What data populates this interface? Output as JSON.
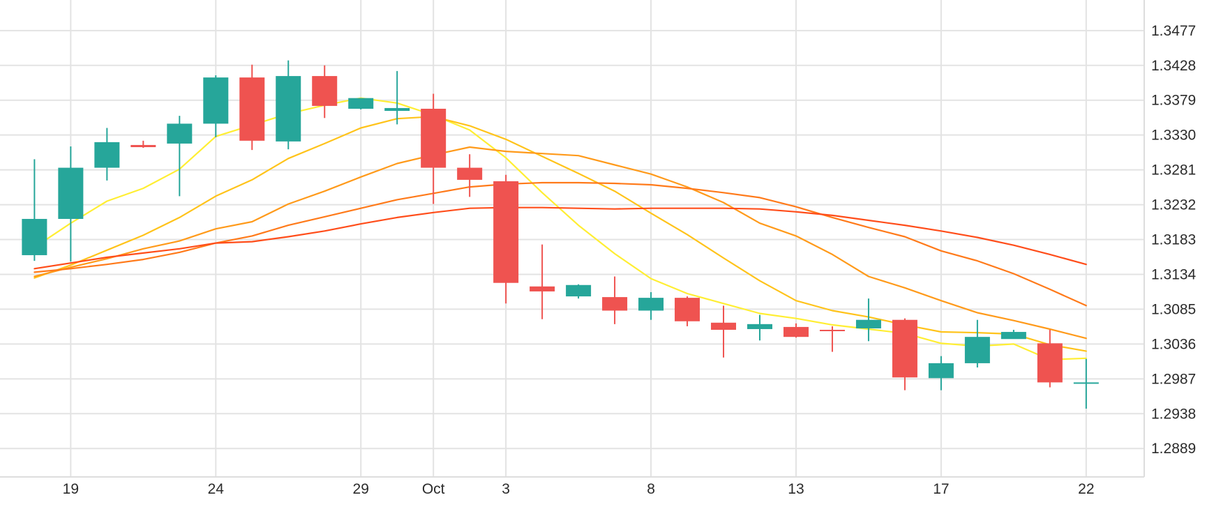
{
  "chart_data": {
    "type": "candlestick",
    "title": "",
    "xlabel": "",
    "ylabel": "",
    "grid": true,
    "y_axis_position": "right",
    "ylim": [
      1.2849,
      1.352
    ],
    "y_ticks": [
      1.2889,
      1.2938,
      1.2987,
      1.3036,
      1.3085,
      1.3134,
      1.3183,
      1.3232,
      1.3281,
      1.333,
      1.3379,
      1.3428,
      1.3477
    ],
    "y_tick_labels": [
      "1.2889",
      "1.2938",
      "1.2987",
      "1.3036",
      "1.3085",
      "1.3134",
      "1.3183",
      "1.3232",
      "1.3281",
      "1.3330",
      "1.3379",
      "1.3428",
      "1.3477"
    ],
    "x_ticks": [
      1,
      5,
      9,
      11,
      13,
      17,
      21,
      25,
      29
    ],
    "x_tick_labels": [
      "19",
      "24",
      "29",
      "Oct",
      "3",
      "8",
      "13",
      "17",
      "22"
    ],
    "xlim": [
      -0.95,
      30.6
    ],
    "colors": {
      "up": "#26a69a",
      "down": "#ef5350",
      "grid": "#e3e3e3",
      "axis_line": "#dddddd"
    },
    "candles": [
      {
        "x": 0,
        "open": 1.3161,
        "high": 1.3296,
        "low": 1.3153,
        "close": 1.3212
      },
      {
        "x": 1,
        "open": 1.3212,
        "high": 1.3314,
        "low": 1.3152,
        "close": 1.3284
      },
      {
        "x": 2,
        "open": 1.3284,
        "high": 1.334,
        "low": 1.3266,
        "close": 1.332
      },
      {
        "x": 3,
        "open": 1.3316,
        "high": 1.3322,
        "low": 1.3312,
        "close": 1.3313
      },
      {
        "x": 4,
        "open": 1.3318,
        "high": 1.3357,
        "low": 1.3244,
        "close": 1.3346
      },
      {
        "x": 5,
        "open": 1.3346,
        "high": 1.3414,
        "low": 1.3327,
        "close": 1.3411
      },
      {
        "x": 6,
        "open": 1.3411,
        "high": 1.3429,
        "low": 1.3309,
        "close": 1.3322
      },
      {
        "x": 7,
        "open": 1.3321,
        "high": 1.3435,
        "low": 1.331,
        "close": 1.3413
      },
      {
        "x": 8,
        "open": 1.3413,
        "high": 1.3428,
        "low": 1.3354,
        "close": 1.3371
      },
      {
        "x": 9,
        "open": 1.3367,
        "high": 1.3382,
        "low": 1.3366,
        "close": 1.3382
      },
      {
        "x": 10,
        "open": 1.3364,
        "high": 1.342,
        "low": 1.3345,
        "close": 1.3368
      },
      {
        "x": 11,
        "open": 1.3367,
        "high": 1.3388,
        "low": 1.3233,
        "close": 1.3284
      },
      {
        "x": 12,
        "open": 1.3284,
        "high": 1.3303,
        "low": 1.3243,
        "close": 1.3267
      },
      {
        "x": 13,
        "open": 1.3265,
        "high": 1.3274,
        "low": 1.3093,
        "close": 1.3122
      },
      {
        "x": 14,
        "open": 1.3117,
        "high": 1.3176,
        "low": 1.3071,
        "close": 1.311
      },
      {
        "x": 15,
        "open": 1.3103,
        "high": 1.312,
        "low": 1.31,
        "close": 1.3119
      },
      {
        "x": 16,
        "open": 1.3102,
        "high": 1.3131,
        "low": 1.3064,
        "close": 1.3083
      },
      {
        "x": 17,
        "open": 1.3083,
        "high": 1.3109,
        "low": 1.307,
        "close": 1.3101
      },
      {
        "x": 18,
        "open": 1.3101,
        "high": 1.3103,
        "low": 1.3061,
        "close": 1.3068
      },
      {
        "x": 19,
        "open": 1.3066,
        "high": 1.309,
        "low": 1.3017,
        "close": 1.3056
      },
      {
        "x": 20,
        "open": 1.3057,
        "high": 1.3077,
        "low": 1.3041,
        "close": 1.3064
      },
      {
        "x": 21,
        "open": 1.306,
        "high": 1.3065,
        "low": 1.3045,
        "close": 1.3046
      },
      {
        "x": 22,
        "open": 1.3056,
        "high": 1.3061,
        "low": 1.3025,
        "close": 1.3055
      },
      {
        "x": 23,
        "open": 1.3058,
        "high": 1.31,
        "low": 1.304,
        "close": 1.307
      },
      {
        "x": 24,
        "open": 1.307,
        "high": 1.3072,
        "low": 1.2971,
        "close": 1.2989
      },
      {
        "x": 25,
        "open": 1.2988,
        "high": 1.3019,
        "low": 1.2971,
        "close": 1.3009
      },
      {
        "x": 26,
        "open": 1.3009,
        "high": 1.307,
        "low": 1.3003,
        "close": 1.3046
      },
      {
        "x": 27,
        "open": 1.3043,
        "high": 1.3056,
        "low": 1.3048,
        "close": 1.3053
      },
      {
        "x": 28,
        "open": 1.3037,
        "high": 1.3056,
        "low": 1.2975,
        "close": 1.2982
      },
      {
        "x": 29,
        "open": 1.2982,
        "high": 1.3015,
        "low": 1.2945,
        "close": 1.2982
      }
    ],
    "lines": [
      {
        "color": "#ffee33",
        "points": [
          [
            0,
            1.3172
          ],
          [
            1,
            1.3206
          ],
          [
            2,
            1.3237
          ],
          [
            3,
            1.3255
          ],
          [
            4,
            1.3282
          ],
          [
            5,
            1.3328
          ],
          [
            6,
            1.3344
          ],
          [
            7,
            1.336
          ],
          [
            8,
            1.3372
          ],
          [
            9,
            1.3382
          ],
          [
            10,
            1.3375
          ],
          [
            11,
            1.3358
          ],
          [
            12,
            1.3337
          ],
          [
            13,
            1.3298
          ],
          [
            14,
            1.3249
          ],
          [
            15,
            1.3203
          ],
          [
            16,
            1.3163
          ],
          [
            17,
            1.3128
          ],
          [
            18,
            1.3107
          ],
          [
            19,
            1.3093
          ],
          [
            20,
            1.3079
          ],
          [
            21,
            1.3072
          ],
          [
            22,
            1.3063
          ],
          [
            23,
            1.3057
          ],
          [
            24,
            1.3051
          ],
          [
            25,
            1.3037
          ],
          [
            26,
            1.3033
          ],
          [
            27,
            1.3036
          ],
          [
            28,
            1.3014
          ],
          [
            29,
            1.3016
          ]
        ]
      },
      {
        "color": "#ffc31a",
        "points": [
          [
            0,
            1.3129
          ],
          [
            1,
            1.3147
          ],
          [
            2,
            1.3168
          ],
          [
            3,
            1.3189
          ],
          [
            4,
            1.3214
          ],
          [
            5,
            1.3244
          ],
          [
            6,
            1.3267
          ],
          [
            7,
            1.3297
          ],
          [
            8,
            1.3318
          ],
          [
            9,
            1.334
          ],
          [
            10,
            1.3353
          ],
          [
            11,
            1.3356
          ],
          [
            12,
            1.3343
          ],
          [
            13,
            1.3324
          ],
          [
            14,
            1.33
          ],
          [
            15,
            1.3276
          ],
          [
            16,
            1.3251
          ],
          [
            17,
            1.322
          ],
          [
            18,
            1.319
          ],
          [
            19,
            1.3157
          ],
          [
            20,
            1.3125
          ],
          [
            21,
            1.3097
          ],
          [
            22,
            1.3083
          ],
          [
            23,
            1.3074
          ],
          [
            24,
            1.3063
          ],
          [
            25,
            1.3053
          ],
          [
            26,
            1.3052
          ],
          [
            27,
            1.305
          ],
          [
            28,
            1.3035
          ],
          [
            29,
            1.3026
          ]
        ]
      },
      {
        "color": "#ff9a1a",
        "points": [
          [
            0,
            1.3131
          ],
          [
            1,
            1.3144
          ],
          [
            2,
            1.3156
          ],
          [
            3,
            1.317
          ],
          [
            4,
            1.3181
          ],
          [
            5,
            1.3198
          ],
          [
            6,
            1.3208
          ],
          [
            7,
            1.3233
          ],
          [
            8,
            1.3251
          ],
          [
            9,
            1.3271
          ],
          [
            10,
            1.329
          ],
          [
            11,
            1.3302
          ],
          [
            12,
            1.3313
          ],
          [
            13,
            1.3307
          ],
          [
            14,
            1.3304
          ],
          [
            15,
            1.3301
          ],
          [
            16,
            1.3288
          ],
          [
            17,
            1.3275
          ],
          [
            18,
            1.3257
          ],
          [
            19,
            1.3235
          ],
          [
            20,
            1.3206
          ],
          [
            21,
            1.3188
          ],
          [
            22,
            1.3162
          ],
          [
            23,
            1.3131
          ],
          [
            24,
            1.3115
          ],
          [
            25,
            1.3097
          ],
          [
            26,
            1.308
          ],
          [
            27,
            1.3069
          ],
          [
            28,
            1.3057
          ],
          [
            29,
            1.3044
          ]
        ]
      },
      {
        "color": "#ff7a1a",
        "points": [
          [
            0,
            1.3137
          ],
          [
            1,
            1.3142
          ],
          [
            2,
            1.3148
          ],
          [
            3,
            1.3155
          ],
          [
            4,
            1.3165
          ],
          [
            5,
            1.3178
          ],
          [
            6,
            1.3188
          ],
          [
            7,
            1.3203
          ],
          [
            8,
            1.3215
          ],
          [
            9,
            1.3227
          ],
          [
            10,
            1.3239
          ],
          [
            11,
            1.3248
          ],
          [
            12,
            1.3257
          ],
          [
            13,
            1.3261
          ],
          [
            14,
            1.3263
          ],
          [
            15,
            1.3263
          ],
          [
            16,
            1.3262
          ],
          [
            17,
            1.326
          ],
          [
            18,
            1.3255
          ],
          [
            19,
            1.3249
          ],
          [
            20,
            1.3242
          ],
          [
            21,
            1.3229
          ],
          [
            22,
            1.3214
          ],
          [
            23,
            1.32
          ],
          [
            24,
            1.3187
          ],
          [
            25,
            1.3167
          ],
          [
            26,
            1.3153
          ],
          [
            27,
            1.3135
          ],
          [
            28,
            1.3113
          ],
          [
            29,
            1.309
          ]
        ]
      },
      {
        "color": "#ff4d1a",
        "points": [
          [
            0,
            1.3142
          ],
          [
            1,
            1.315
          ],
          [
            2,
            1.3158
          ],
          [
            3,
            1.3164
          ],
          [
            4,
            1.317
          ],
          [
            5,
            1.3178
          ],
          [
            6,
            1.318
          ],
          [
            7,
            1.3187
          ],
          [
            8,
            1.3195
          ],
          [
            9,
            1.3205
          ],
          [
            10,
            1.3214
          ],
          [
            11,
            1.3221
          ],
          [
            12,
            1.3227
          ],
          [
            13,
            1.3228
          ],
          [
            14,
            1.3228
          ],
          [
            15,
            1.3227
          ],
          [
            16,
            1.3226
          ],
          [
            17,
            1.3227
          ],
          [
            18,
            1.3227
          ],
          [
            19,
            1.3227
          ],
          [
            20,
            1.3226
          ],
          [
            21,
            1.3222
          ],
          [
            22,
            1.3217
          ],
          [
            23,
            1.321
          ],
          [
            24,
            1.3203
          ],
          [
            25,
            1.3195
          ],
          [
            26,
            1.3186
          ],
          [
            27,
            1.3175
          ],
          [
            28,
            1.3162
          ],
          [
            29,
            1.3148
          ]
        ]
      }
    ]
  }
}
